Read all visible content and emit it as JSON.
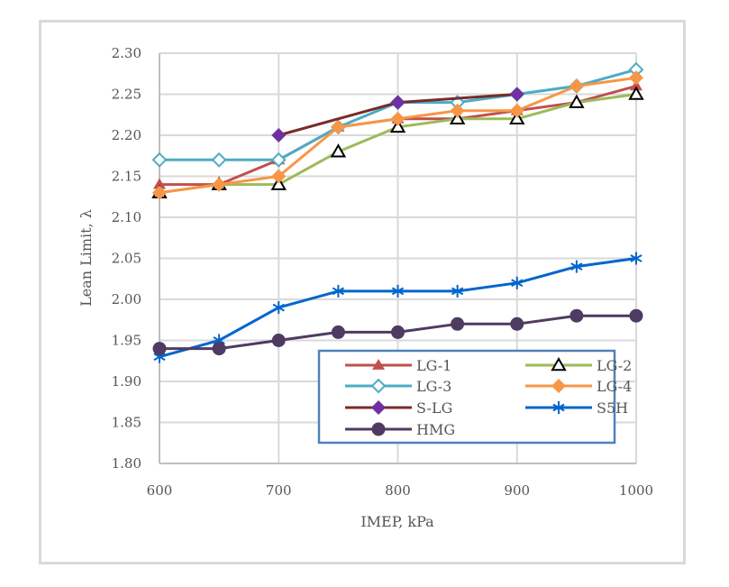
{
  "chart_data": {
    "type": "line",
    "title": "",
    "xlabel": "IMEP, kPa",
    "ylabel": "Lean Limit, λ",
    "x": [
      600,
      650,
      700,
      750,
      800,
      850,
      900,
      950,
      1000
    ],
    "xlim": [
      600,
      1000
    ],
    "ylim": [
      1.8,
      2.3
    ],
    "xticks": [
      600,
      700,
      800,
      900,
      1000
    ],
    "xtick_labels": [
      "600",
      "700",
      "800",
      "900",
      "1000"
    ],
    "yticks": [
      1.8,
      1.85,
      1.9,
      1.95,
      2.0,
      2.05,
      2.1,
      2.15,
      2.2,
      2.25,
      2.3
    ],
    "ytick_labels": [
      "1.80",
      "1.85",
      "1.90",
      "1.95",
      "2.00",
      "2.05",
      "2.10",
      "2.15",
      "2.20",
      "2.25",
      "2.30"
    ],
    "grid": true,
    "legend_position": "bottom-right",
    "series": [
      {
        "name": "LG-1",
        "color": "#c0504d",
        "marker": "triangle-filled",
        "marker_color": "#c0504d",
        "values": [
          2.14,
          2.14,
          2.17,
          2.21,
          2.22,
          2.22,
          2.23,
          2.24,
          2.26
        ]
      },
      {
        "name": "LG-2",
        "color": "#9bbb59",
        "marker": "triangle-open",
        "marker_color": "#000000",
        "values": [
          2.13,
          2.14,
          2.14,
          2.18,
          2.21,
          2.22,
          2.22,
          2.24,
          2.25
        ]
      },
      {
        "name": "LG-3",
        "color": "#4bacc6",
        "marker": "diamond-open",
        "marker_color": "#4bacc6",
        "values": [
          2.17,
          2.17,
          2.17,
          2.21,
          2.24,
          2.24,
          2.25,
          2.26,
          2.28
        ]
      },
      {
        "name": "LG-4",
        "color": "#f79646",
        "marker": "diamond-filled",
        "marker_color": "#f79646",
        "values": [
          2.13,
          2.14,
          2.15,
          2.21,
          2.22,
          2.23,
          2.23,
          2.26,
          2.27
        ]
      },
      {
        "name": "S-LG",
        "color": "#772c2a",
        "marker": "diamond-filled",
        "marker_color": "#7030a0",
        "values": [
          null,
          null,
          2.2,
          null,
          2.24,
          null,
          2.25,
          null,
          null
        ]
      },
      {
        "name": "S5H",
        "color": "#0066cc",
        "marker": "asterisk",
        "marker_color": "#0066cc",
        "values": [
          1.93,
          1.95,
          1.99,
          2.01,
          2.01,
          2.01,
          2.02,
          2.04,
          2.05
        ]
      },
      {
        "name": "HMG",
        "color": "#4f3b62",
        "marker": "circle-filled",
        "marker_color": "#4f3b62",
        "values": [
          1.94,
          1.94,
          1.95,
          1.96,
          1.96,
          1.97,
          1.97,
          1.98,
          1.98
        ]
      }
    ]
  }
}
